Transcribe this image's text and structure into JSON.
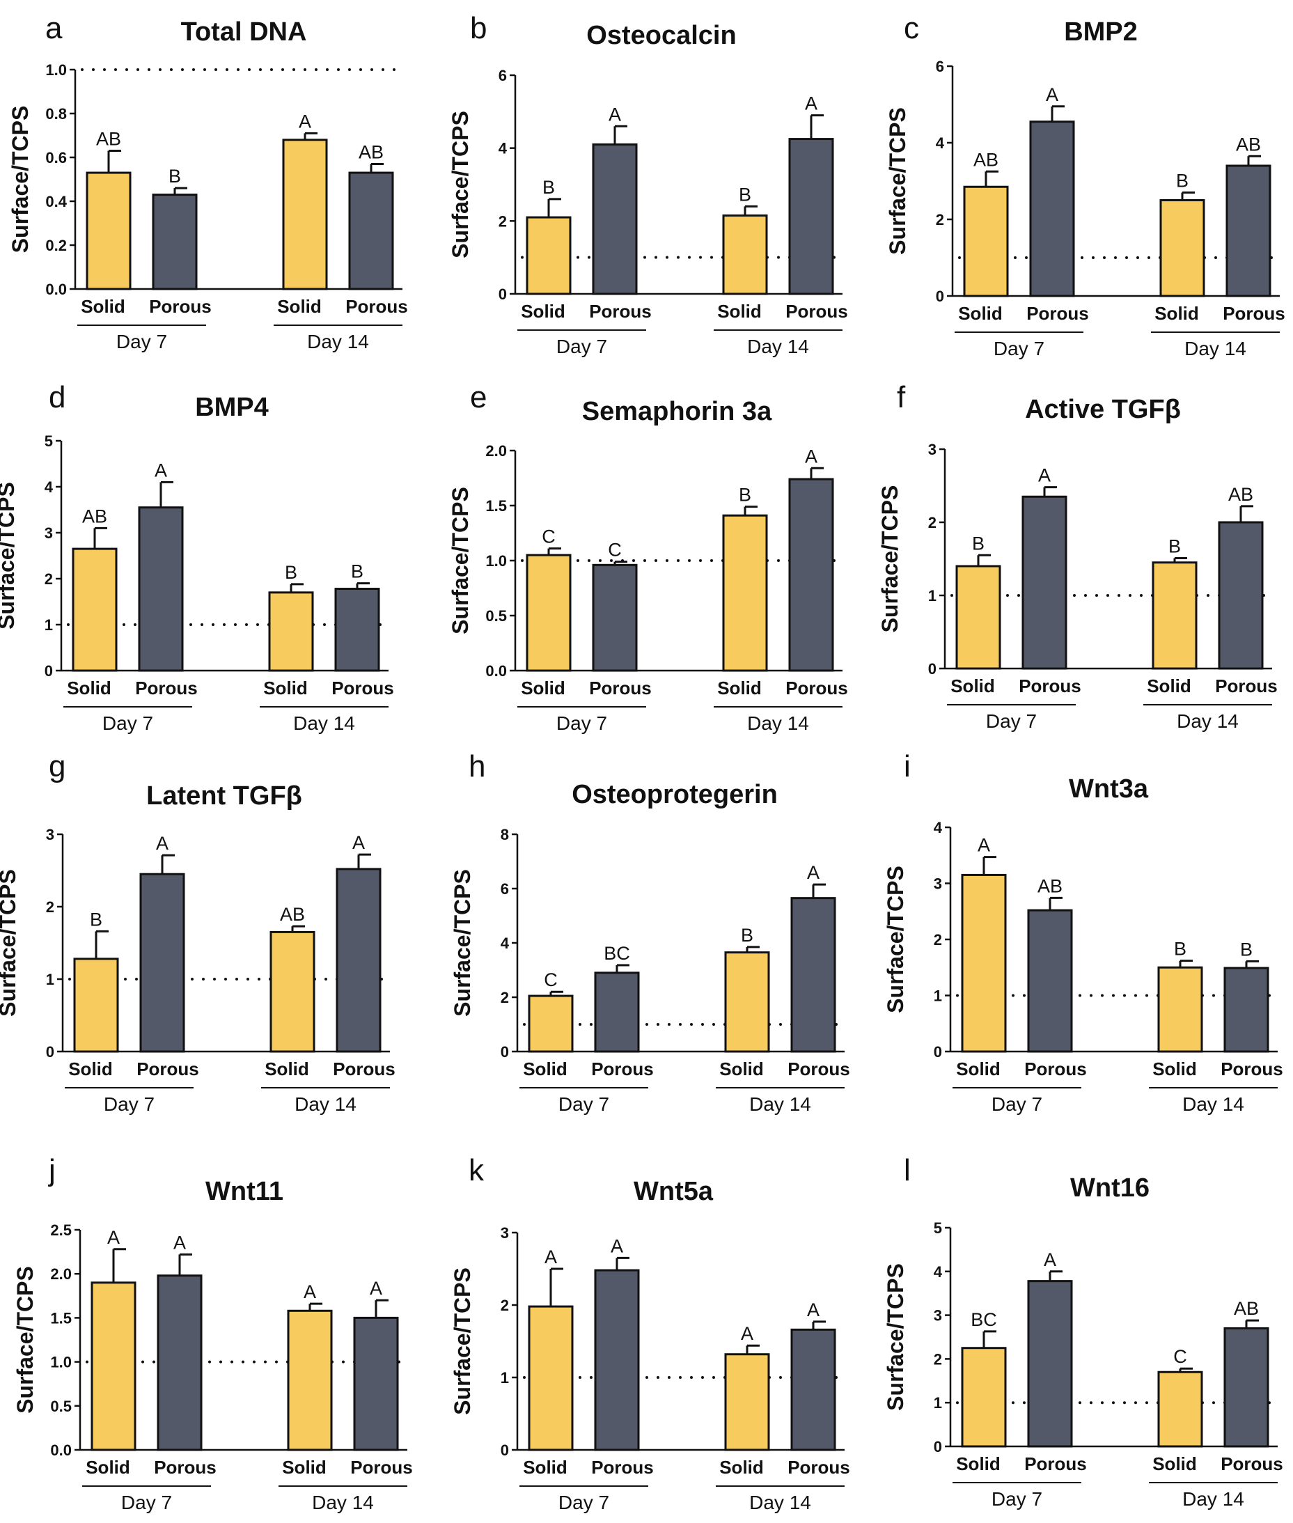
{
  "figure": {
    "colors": {
      "solid": "#F8CB5F",
      "porous": "#545969",
      "stroke": "#111111"
    },
    "x_categories": [
      "Solid",
      "Porous"
    ],
    "group_labels": [
      "Day 7",
      "Day 14"
    ]
  },
  "chart_data": [
    {
      "letter": "a",
      "type": "bar",
      "title": "Total DNA",
      "ylabel": "Surface/TCPS",
      "ylim": [
        0,
        1.0
      ],
      "yticks": [
        "0.0",
        "0.2",
        "0.4",
        "0.6",
        "0.8",
        "1.0"
      ],
      "reference_line": 1.0,
      "categories": [
        "Solid",
        "Porous",
        "Solid",
        "Porous"
      ],
      "groups": [
        "Day 7",
        "Day 14"
      ],
      "values": [
        0.53,
        0.43,
        0.68,
        0.53
      ],
      "errors": [
        0.1,
        0.03,
        0.03,
        0.04
      ],
      "significance": [
        "AB",
        "B",
        "A",
        "AB"
      ]
    },
    {
      "letter": "b",
      "type": "bar",
      "title": "Osteocalcin",
      "ylabel": "Surface/TCPS",
      "ylim": [
        0,
        6
      ],
      "yticks": [
        "0",
        "2",
        "4",
        "6"
      ],
      "reference_line": 1,
      "categories": [
        "Solid",
        "Porous",
        "Solid",
        "Porous"
      ],
      "groups": [
        "Day 7",
        "Day 14"
      ],
      "values": [
        2.1,
        4.1,
        2.15,
        4.25
      ],
      "errors": [
        0.5,
        0.5,
        0.25,
        0.65
      ],
      "significance": [
        "B",
        "A",
        "B",
        "A"
      ]
    },
    {
      "letter": "c",
      "type": "bar",
      "title": "BMP2",
      "ylabel": "Surface/TCPS",
      "ylim": [
        0,
        6
      ],
      "yticks": [
        "0",
        "2",
        "4",
        "6"
      ],
      "reference_line": 1,
      "categories": [
        "Solid",
        "Porous",
        "Solid",
        "Porous"
      ],
      "groups": [
        "Day 7",
        "Day 14"
      ],
      "values": [
        2.85,
        4.55,
        2.5,
        3.4
      ],
      "errors": [
        0.4,
        0.4,
        0.2,
        0.25
      ],
      "significance": [
        "AB",
        "A",
        "B",
        "AB"
      ]
    },
    {
      "letter": "d",
      "type": "bar",
      "title": "BMP4",
      "ylabel": "Surface/TCPS",
      "ylim": [
        0,
        5
      ],
      "yticks": [
        "0",
        "1",
        "2",
        "3",
        "4",
        "5"
      ],
      "reference_line": 1,
      "categories": [
        "Solid",
        "Porous",
        "Solid",
        "Porous"
      ],
      "groups": [
        "Day 7",
        "Day 14"
      ],
      "values": [
        2.65,
        3.55,
        1.7,
        1.78
      ],
      "errors": [
        0.45,
        0.55,
        0.18,
        0.12
      ],
      "significance": [
        "AB",
        "A",
        "B",
        "B"
      ]
    },
    {
      "letter": "e",
      "type": "bar",
      "title": "Semaphorin 3a",
      "ylabel": "Surface/TCPS",
      "ylim": [
        0,
        2.0
      ],
      "yticks": [
        "0.0",
        "0.5",
        "1.0",
        "1.5",
        "2.0"
      ],
      "reference_line": 1.0,
      "categories": [
        "Solid",
        "Porous",
        "Solid",
        "Porous"
      ],
      "groups": [
        "Day 7",
        "Day 14"
      ],
      "values": [
        1.05,
        0.96,
        1.41,
        1.74
      ],
      "errors": [
        0.06,
        0.03,
        0.08,
        0.1
      ],
      "significance": [
        "C",
        "C",
        "B",
        "A"
      ]
    },
    {
      "letter": "f",
      "type": "bar",
      "title": "Active TGFβ",
      "ylabel": "Surface/TCPS",
      "ylim": [
        0,
        3
      ],
      "yticks": [
        "0",
        "1",
        "2",
        "3"
      ],
      "reference_line": 1,
      "categories": [
        "Solid",
        "Porous",
        "Solid",
        "Porous"
      ],
      "groups": [
        "Day 7",
        "Day 14"
      ],
      "values": [
        1.4,
        2.35,
        1.45,
        2.0
      ],
      "errors": [
        0.15,
        0.13,
        0.06,
        0.22
      ],
      "significance": [
        "B",
        "A",
        "B",
        "AB"
      ]
    },
    {
      "letter": "g",
      "type": "bar",
      "title": "Latent TGFβ",
      "ylabel": "Surface/TCPS",
      "ylim": [
        0,
        3
      ],
      "yticks": [
        "0",
        "1",
        "2",
        "3"
      ],
      "reference_line": 1,
      "categories": [
        "Solid",
        "Porous",
        "Solid",
        "Porous"
      ],
      "groups": [
        "Day 7",
        "Day 14"
      ],
      "values": [
        1.28,
        2.45,
        1.65,
        2.52
      ],
      "errors": [
        0.38,
        0.26,
        0.08,
        0.2
      ],
      "significance": [
        "B",
        "A",
        "AB",
        "A"
      ]
    },
    {
      "letter": "h",
      "type": "bar",
      "title": "Osteoprotegerin",
      "ylabel": "Surface/TCPS",
      "ylim": [
        0,
        8
      ],
      "yticks": [
        "0",
        "2",
        "4",
        "6",
        "8"
      ],
      "reference_line": 1,
      "categories": [
        "Solid",
        "Porous",
        "Solid",
        "Porous"
      ],
      "groups": [
        "Day 7",
        "Day 14"
      ],
      "values": [
        2.05,
        2.9,
        3.65,
        5.65
      ],
      "errors": [
        0.15,
        0.28,
        0.2,
        0.5
      ],
      "significance": [
        "C",
        "BC",
        "B",
        "A"
      ]
    },
    {
      "letter": "i",
      "type": "bar",
      "title": "Wnt3a",
      "ylabel": "Surface/TCPS",
      "ylim": [
        0,
        4
      ],
      "yticks": [
        "0",
        "1",
        "2",
        "3",
        "4"
      ],
      "reference_line": 1,
      "categories": [
        "Solid",
        "Porous",
        "Solid",
        "Porous"
      ],
      "groups": [
        "Day 7",
        "Day 14"
      ],
      "values": [
        3.15,
        2.52,
        1.5,
        1.49
      ],
      "errors": [
        0.32,
        0.22,
        0.12,
        0.12
      ],
      "significance": [
        "A",
        "AB",
        "B",
        "B"
      ]
    },
    {
      "letter": "j",
      "type": "bar",
      "title": "Wnt11",
      "ylabel": "Surface/TCPS",
      "ylim": [
        0,
        2.5
      ],
      "yticks": [
        "0.0",
        "0.5",
        "1.0",
        "1.5",
        "2.0",
        "2.5"
      ],
      "reference_line": 1.0,
      "categories": [
        "Solid",
        "Porous",
        "Solid",
        "Porous"
      ],
      "groups": [
        "Day 7",
        "Day 14"
      ],
      "values": [
        1.9,
        1.98,
        1.58,
        1.5
      ],
      "errors": [
        0.38,
        0.24,
        0.08,
        0.2
      ],
      "significance": [
        "A",
        "A",
        "A",
        "A"
      ]
    },
    {
      "letter": "k",
      "type": "bar",
      "title": "Wnt5a",
      "ylabel": "Surface/TCPS",
      "ylim": [
        0,
        3
      ],
      "yticks": [
        "0",
        "1",
        "2",
        "3"
      ],
      "reference_line": 1,
      "categories": [
        "Solid",
        "Porous",
        "Solid",
        "Porous"
      ],
      "groups": [
        "Day 7",
        "Day 14"
      ],
      "values": [
        1.98,
        2.48,
        1.32,
        1.66
      ],
      "errors": [
        0.52,
        0.17,
        0.12,
        0.11
      ],
      "significance": [
        "A",
        "A",
        "A",
        "A"
      ]
    },
    {
      "letter": "l",
      "type": "bar",
      "title": "Wnt16",
      "ylabel": "Surface/TCPS",
      "ylim": [
        0,
        5
      ],
      "yticks": [
        "0",
        "1",
        "2",
        "3",
        "4",
        "5"
      ],
      "reference_line": 1,
      "categories": [
        "Solid",
        "Porous",
        "Solid",
        "Porous"
      ],
      "groups": [
        "Day 7",
        "Day 14"
      ],
      "values": [
        2.25,
        3.78,
        1.7,
        2.7
      ],
      "errors": [
        0.38,
        0.22,
        0.08,
        0.18
      ],
      "significance": [
        "BC",
        "A",
        "C",
        "AB"
      ]
    }
  ]
}
